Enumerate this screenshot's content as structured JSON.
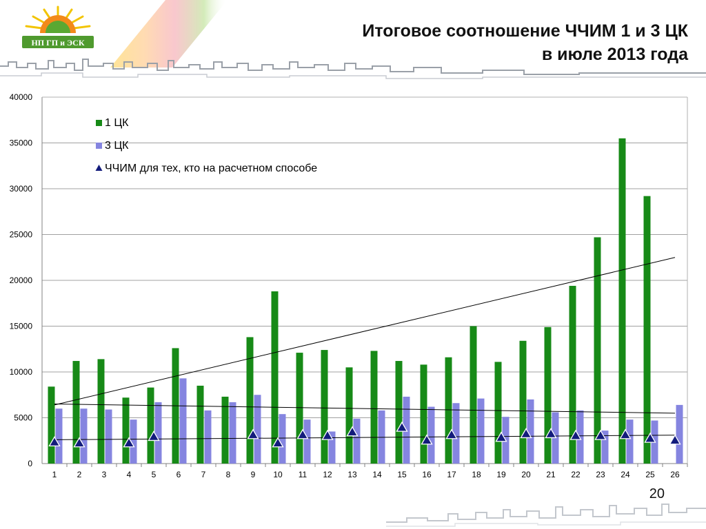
{
  "slide": {
    "title_line1": "Итоговое соотношение ЧЧИМ 1 и 3 ЦК",
    "title_line2": "в июле 2013 года",
    "logo_text": "НП ГП и ЭСК",
    "page_number": "20"
  },
  "colors": {
    "series_1ck": "#178a17",
    "series_3ck": "#8585e0",
    "series_chim": "#131c7c",
    "grid": "#a0a0a0",
    "trend": "#000000"
  },
  "chart_data": {
    "type": "bar",
    "title": "",
    "xlabel": "",
    "ylabel": "",
    "ylim": [
      0,
      40000
    ],
    "yticks": [
      0,
      5000,
      10000,
      15000,
      20000,
      25000,
      30000,
      35000,
      40000
    ],
    "grid": true,
    "legend_position": "top-left",
    "categories": [
      "1",
      "2",
      "3",
      "4",
      "5",
      "6",
      "7",
      "8",
      "9",
      "10",
      "11",
      "12",
      "13",
      "14",
      "15",
      "16",
      "17",
      "18",
      "19",
      "20",
      "21",
      "22",
      "23",
      "24",
      "25",
      "26"
    ],
    "series": [
      {
        "name": "1 ЦК",
        "kind": "bar",
        "values": [
          8400,
          11200,
          11400,
          7200,
          8300,
          12600,
          8500,
          7300,
          13800,
          18800,
          12100,
          12400,
          10500,
          12300,
          11200,
          10800,
          11600,
          15000,
          11100,
          13400,
          14900,
          19400,
          24700,
          35500,
          29200,
          null
        ]
      },
      {
        "name": "3 ЦК",
        "kind": "bar",
        "values": [
          6000,
          6000,
          5900,
          4800,
          6700,
          9300,
          5800,
          6700,
          7500,
          5400,
          4800,
          3500,
          4900,
          5800,
          7300,
          6200,
          6600,
          7100,
          5100,
          7000,
          5600,
          5800,
          3600,
          4800,
          4700,
          6400
        ]
      },
      {
        "name": "ЧЧИМ для тех, кто на расчетном способе",
        "kind": "marker",
        "values": [
          2300,
          2200,
          null,
          2200,
          2900,
          null,
          null,
          null,
          3100,
          2200,
          3100,
          3000,
          3400,
          null,
          3900,
          2500,
          3100,
          null,
          2800,
          3200,
          3200,
          3000,
          3000,
          3100,
          2700,
          2500
        ]
      }
    ],
    "trendlines": [
      {
        "series": "1 ЦК",
        "from": [
          1,
          6400
        ],
        "to": [
          26,
          22500
        ]
      },
      {
        "series": "3 ЦК",
        "from": [
          1,
          6500
        ],
        "to": [
          26,
          5500
        ]
      },
      {
        "series": "ЧЧИМ для тех, кто на расчетном способе",
        "from": [
          1,
          2600
        ],
        "to": [
          26,
          3100
        ]
      }
    ]
  }
}
